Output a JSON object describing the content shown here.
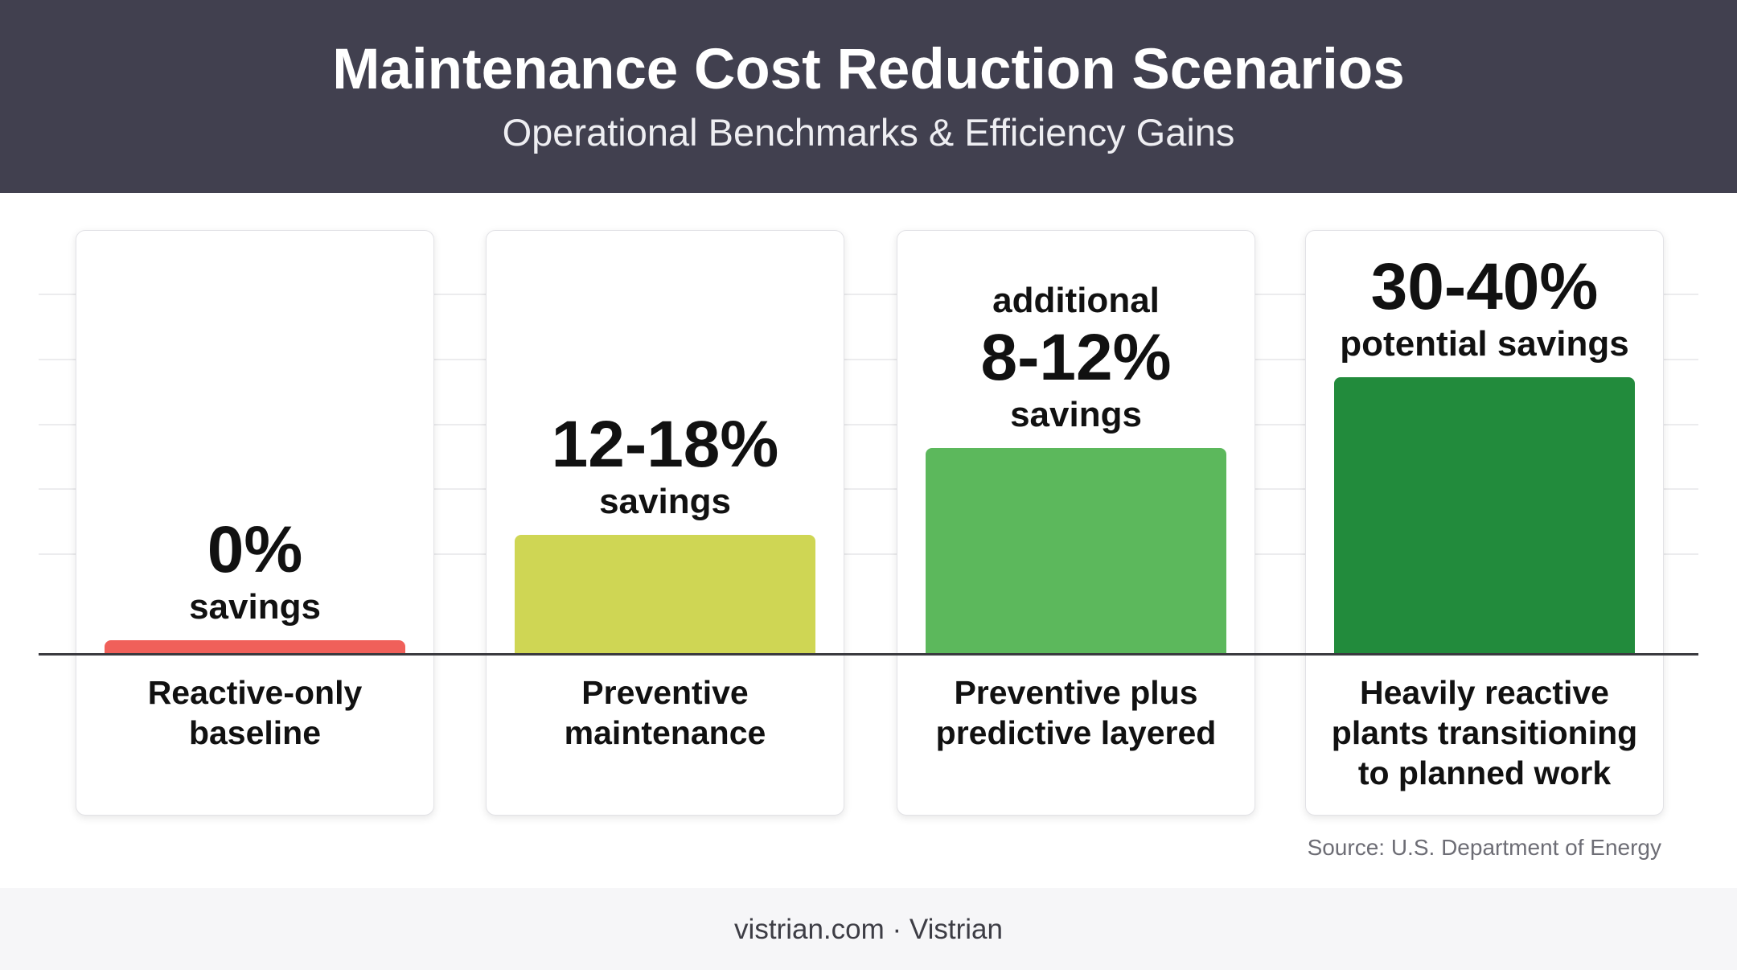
{
  "header": {
    "title": "Maintenance Cost Reduction Scenarios",
    "subtitle": "Operational Benchmarks & Efficiency Gains"
  },
  "chart_data": {
    "type": "bar",
    "title": "Maintenance Cost Reduction Scenarios",
    "subtitle": "Operational Benchmarks & Efficiency Gains",
    "categories": [
      "Reactive-only baseline",
      "Preventive maintenance",
      "Preventive plus predictive layered",
      "Heavily reactive plants transitioning to planned work"
    ],
    "values": [
      0,
      15,
      26,
      35
    ],
    "ylim": [
      0,
      40
    ],
    "grid": true,
    "xlabel": "",
    "ylabel": "",
    "value_labels": [
      {
        "prefix": "",
        "main": "0%",
        "suffix": "savings"
      },
      {
        "prefix": "",
        "main": "12-18%",
        "suffix": "savings"
      },
      {
        "prefix": "additional",
        "main": "8-12%",
        "suffix": "savings"
      },
      {
        "prefix": "",
        "main": "30-40%",
        "suffix": "potential savings"
      }
    ],
    "colors": [
      "#f0605a",
      "#cfd654",
      "#5cb85c",
      "#228b3c"
    ]
  },
  "source": "Source: U.S. Department of Energy",
  "footer": {
    "text": "vistrian.com · Vistrian"
  }
}
